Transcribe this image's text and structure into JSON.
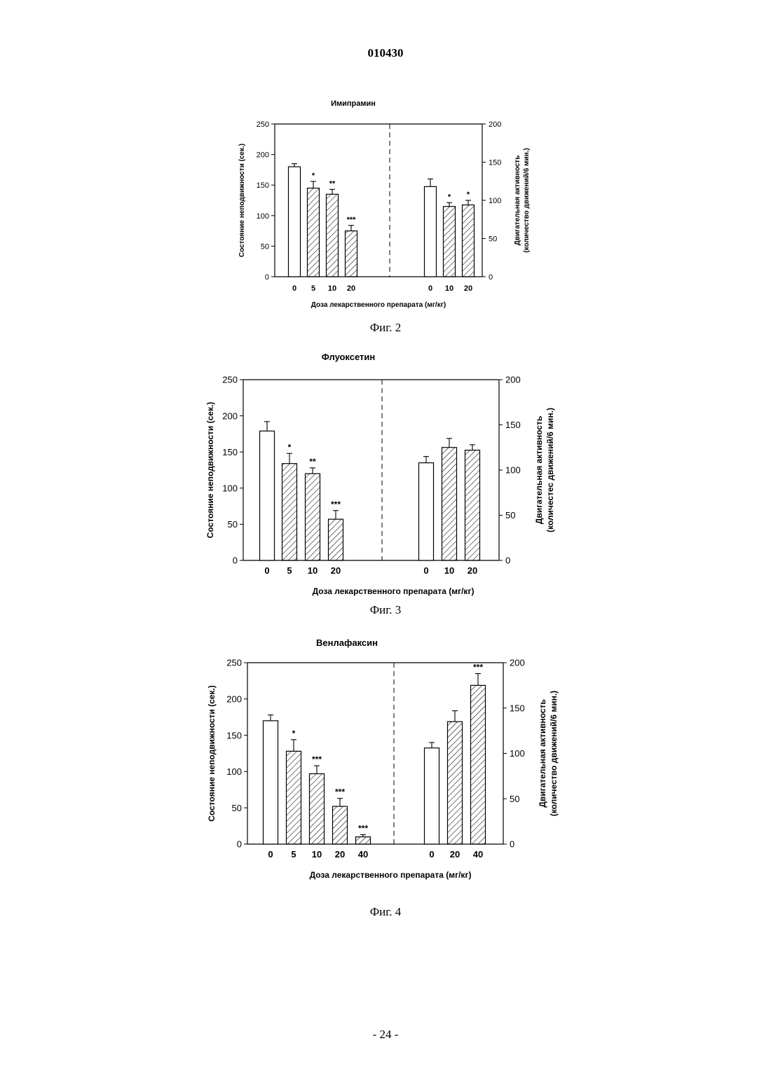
{
  "header": {
    "doc_number": "010430"
  },
  "footer": {
    "page_number": "- 24 -"
  },
  "figures": [
    {
      "caption": "Фиг. 2"
    },
    {
      "caption": "Фиг. 3"
    },
    {
      "caption": "Фиг. 4"
    }
  ],
  "chart_data": [
    {
      "type": "bar",
      "title": "Имипрамин",
      "xlabel": "Доза лекарственного препарата (мг/кг)",
      "left": {
        "ylabel": "Состояние неподвижности (сек.)",
        "ylim": [
          0,
          250
        ],
        "yticks": [
          0,
          50,
          100,
          150,
          200,
          250
        ],
        "categories": [
          "0",
          "5",
          "10",
          "20"
        ],
        "values": [
          180,
          145,
          135,
          75
        ],
        "errors": [
          5,
          11,
          8,
          9
        ],
        "significance": [
          "",
          "*",
          "**",
          "***"
        ],
        "hatched": [
          false,
          true,
          true,
          true
        ]
      },
      "right": {
        "ylabel_line1": "Двигательная активность",
        "ylabel_line2": "(количество движений/6 мин.)",
        "ylim": [
          0,
          200
        ],
        "yticks": [
          0,
          50,
          100,
          150,
          200
        ],
        "categories": [
          "0",
          "10",
          "20"
        ],
        "values": [
          118,
          92,
          94
        ],
        "errors": [
          10,
          5,
          6
        ],
        "significance": [
          "",
          "*",
          "*"
        ],
        "hatched": [
          false,
          true,
          true
        ]
      }
    },
    {
      "type": "bar",
      "title": "Флуоксетин",
      "xlabel": "Доза лекарственного препарата (мг/кг)",
      "left": {
        "ylabel": "Состояние неподвижности (сек.)",
        "ylim": [
          0,
          250
        ],
        "yticks": [
          0,
          50,
          100,
          150,
          200,
          250
        ],
        "categories": [
          "0",
          "5",
          "10",
          "20"
        ],
        "values": [
          179,
          134,
          120,
          57
        ],
        "errors": [
          13,
          14,
          8,
          12
        ],
        "significance": [
          "",
          "*",
          "**",
          "***"
        ],
        "hatched": [
          false,
          true,
          true,
          true
        ]
      },
      "right": {
        "ylabel_line1": "Двигательная активность",
        "ylabel_line2": "(количестес движений/6 мин.)",
        "ylim": [
          0,
          200
        ],
        "yticks": [
          0,
          50,
          100,
          150,
          200
        ],
        "categories": [
          "0",
          "10",
          "20"
        ],
        "values": [
          108,
          125,
          122
        ],
        "errors": [
          7,
          10,
          6
        ],
        "significance": [
          "",
          "",
          ""
        ],
        "hatched": [
          false,
          true,
          true
        ]
      }
    },
    {
      "type": "bar",
      "title": "Венлафаксин",
      "xlabel": "Доза лекарственного препарата (мг/кг)",
      "left": {
        "ylabel": "Состояние неподвижности (сек.)",
        "ylim": [
          0,
          250
        ],
        "yticks": [
          0,
          50,
          100,
          150,
          200,
          250
        ],
        "categories": [
          "0",
          "5",
          "10",
          "20",
          "40"
        ],
        "values": [
          170,
          128,
          97,
          52,
          10
        ],
        "errors": [
          8,
          16,
          11,
          11,
          3
        ],
        "significance": [
          "",
          "*",
          "***",
          "***",
          "***"
        ],
        "hatched": [
          false,
          true,
          true,
          true,
          true
        ]
      },
      "right": {
        "ylabel_line1": "Двигательная активность",
        "ylabel_line2": "(количество движений/6 мин.)",
        "ylim": [
          0,
          200
        ],
        "yticks": [
          0,
          50,
          100,
          150,
          200
        ],
        "categories": [
          "0",
          "20",
          "40"
        ],
        "values": [
          106,
          135,
          175
        ],
        "errors": [
          6,
          12,
          13
        ],
        "significance": [
          "",
          "",
          "***"
        ],
        "hatched": [
          false,
          true,
          true
        ]
      }
    }
  ]
}
